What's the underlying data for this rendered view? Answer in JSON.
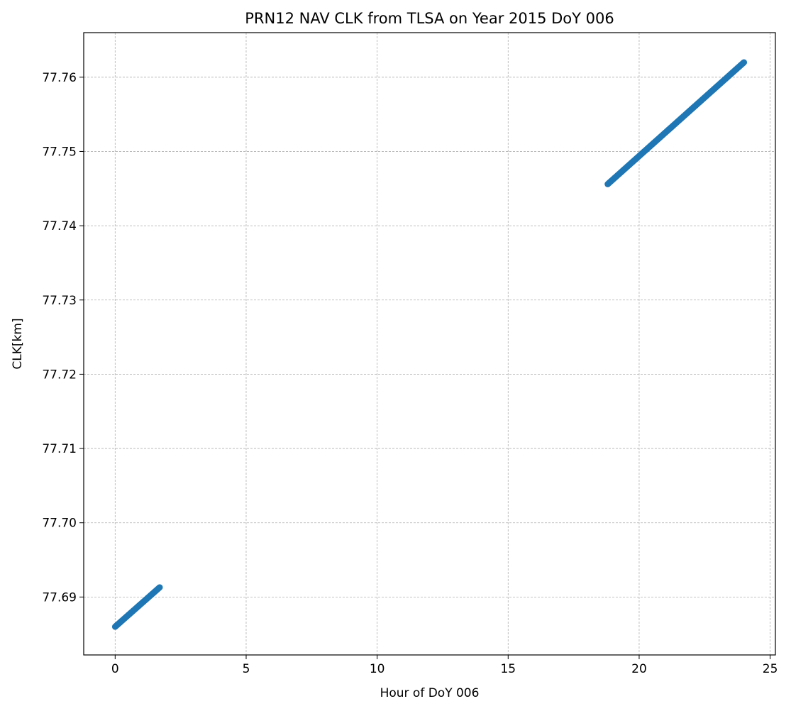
{
  "chart_data": {
    "type": "scatter",
    "title": "PRN12 NAV CLK from TLSA on Year 2015 DoY 006",
    "xlabel": "Hour of DoY 006",
    "ylabel": "CLK[km]",
    "xlim": [
      -1.2,
      25.2
    ],
    "ylim": [
      77.6822,
      77.766
    ],
    "xticks": [
      0,
      5,
      10,
      15,
      20,
      25
    ],
    "yticks": [
      77.69,
      77.7,
      77.71,
      77.72,
      77.73,
      77.74,
      77.75,
      77.76
    ],
    "xtick_labels": [
      "0",
      "5",
      "10",
      "15",
      "20",
      "25"
    ],
    "ytick_labels": [
      "77.69",
      "77.70",
      "77.71",
      "77.72",
      "77.73",
      "77.74",
      "77.75",
      "77.76"
    ],
    "grid": true,
    "marker_color": "#1f77b4",
    "series": [
      {
        "segments": [
          {
            "x_start": 0.0,
            "x_end": 1.7,
            "y_start": 77.686,
            "y_end": 77.6913
          },
          {
            "x_start": 18.8,
            "x_end": 24.0,
            "y_start": 77.7456,
            "y_end": 77.762
          }
        ]
      }
    ]
  }
}
